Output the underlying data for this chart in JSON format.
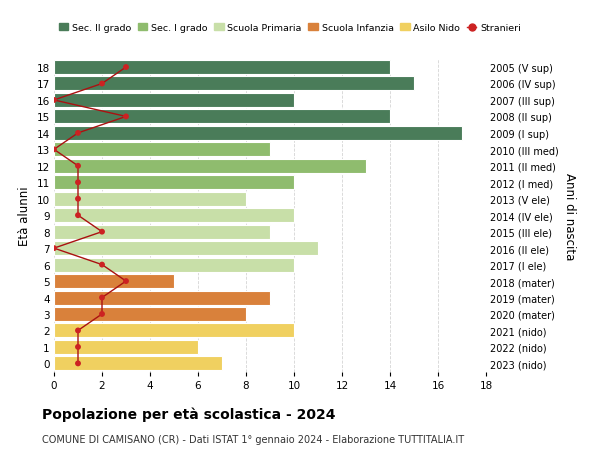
{
  "ages": [
    18,
    17,
    16,
    15,
    14,
    13,
    12,
    11,
    10,
    9,
    8,
    7,
    6,
    5,
    4,
    3,
    2,
    1,
    0
  ],
  "years": [
    "2005 (V sup)",
    "2006 (IV sup)",
    "2007 (III sup)",
    "2008 (II sup)",
    "2009 (I sup)",
    "2010 (III med)",
    "2011 (II med)",
    "2012 (I med)",
    "2013 (V ele)",
    "2014 (IV ele)",
    "2015 (III ele)",
    "2016 (II ele)",
    "2017 (I ele)",
    "2018 (mater)",
    "2019 (mater)",
    "2020 (mater)",
    "2021 (nido)",
    "2022 (nido)",
    "2023 (nido)"
  ],
  "bar_values": [
    14,
    15,
    10,
    14,
    17,
    9,
    13,
    10,
    8,
    10,
    9,
    11,
    10,
    5,
    9,
    8,
    10,
    6,
    7
  ],
  "bar_colors": [
    "#4a7c59",
    "#4a7c59",
    "#4a7c59",
    "#4a7c59",
    "#4a7c59",
    "#8fbc6e",
    "#8fbc6e",
    "#8fbc6e",
    "#c8dfa8",
    "#c8dfa8",
    "#c8dfa8",
    "#c8dfa8",
    "#c8dfa8",
    "#d9813b",
    "#d9813b",
    "#d9813b",
    "#f0d060",
    "#f0d060",
    "#f0d060"
  ],
  "stranieri_values": [
    3,
    2,
    0,
    3,
    1,
    0,
    1,
    1,
    1,
    1,
    2,
    0,
    2,
    3,
    2,
    2,
    1,
    1,
    1
  ],
  "title_bold": "Popolazione per età scolastica - 2024",
  "subtitle": "COMUNE DI CAMISANO (CR) - Dati ISTAT 1° gennaio 2024 - Elaborazione TUTTITALIA.IT",
  "ylabel": "Età alunni",
  "ylabel2": "Anni di nascita",
  "xlim": [
    0,
    18
  ],
  "xticks": [
    0,
    2,
    4,
    6,
    8,
    10,
    12,
    14,
    16,
    18
  ],
  "legend_labels": [
    "Sec. II grado",
    "Sec. I grado",
    "Scuola Primaria",
    "Scuola Infanzia",
    "Asilo Nido",
    "Stranieri"
  ],
  "legend_colors": [
    "#4a7c59",
    "#8fbc6e",
    "#c8dfa8",
    "#d9813b",
    "#f0d060",
    "#cc2222"
  ],
  "stranieri_line_color": "#aa1111",
  "stranieri_dot_color": "#cc2222",
  "background_color": "#ffffff",
  "grid_color": "#d5d5d5"
}
